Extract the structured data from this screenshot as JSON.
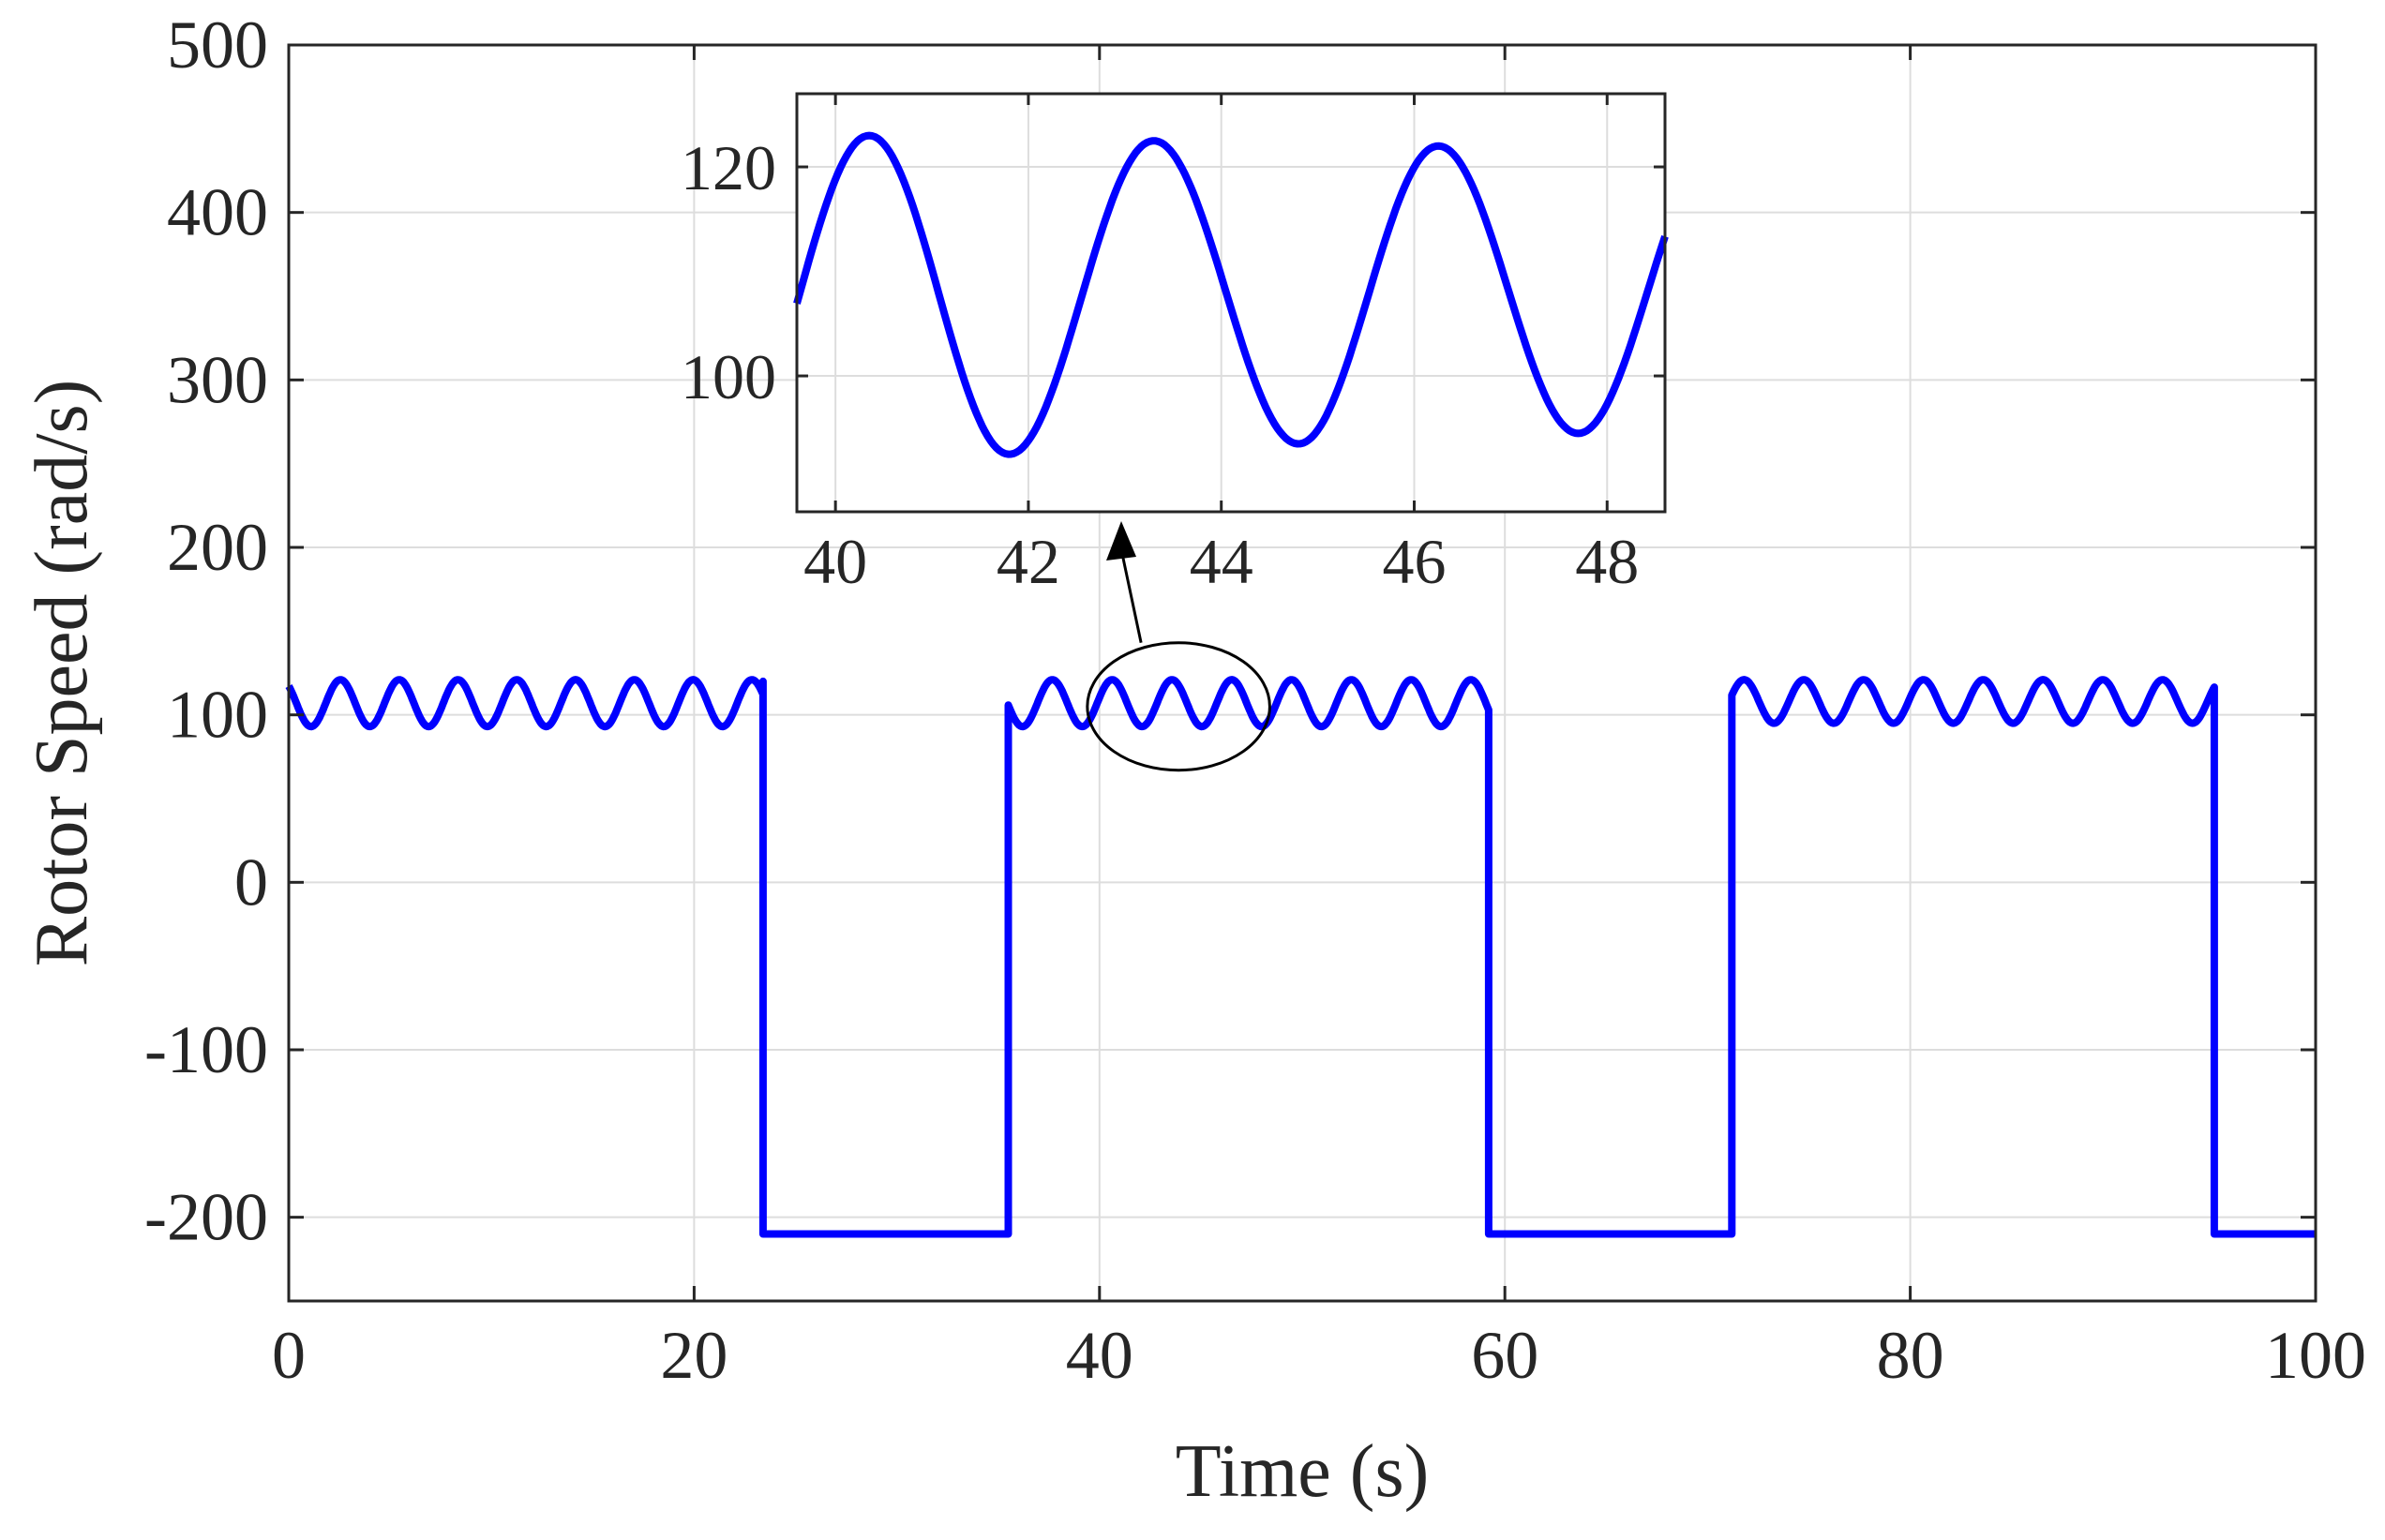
{
  "chart_data": [
    {
      "type": "line",
      "role": "main",
      "xlabel": "Time (s)",
      "ylabel": "Rotor Speed (rad/s)",
      "xlim": [
        0,
        100
      ],
      "ylim": [
        -250,
        500
      ],
      "xticks": [
        0,
        20,
        40,
        60,
        80,
        100
      ],
      "xtick_labels": [
        "0",
        "20",
        "40",
        "60",
        "80",
        "100"
      ],
      "yticks": [
        -200,
        -100,
        0,
        100,
        200,
        300,
        400,
        500
      ],
      "ytick_labels": [
        "-200",
        "-100",
        "0",
        "100",
        "200",
        "300",
        "400",
        "500"
      ],
      "grid": true,
      "line_color": "#0000ff",
      "series": [
        {
          "segments": [
            {
              "kind": "oscillation",
              "x_start": 0,
              "x_end": 23.4,
              "center": 107,
              "amplitude": 14,
              "period": 2.9,
              "phase_x": 1.1,
              "trough_at_phase": true
            },
            {
              "kind": "step",
              "x": 23.4,
              "from": 120,
              "to": -210
            },
            {
              "kind": "constant",
              "x_start": 23.4,
              "x_end": 35.5,
              "y": -210
            },
            {
              "kind": "step",
              "x": 35.5,
              "from": -210,
              "to": 98
            },
            {
              "kind": "oscillation",
              "x_start": 35.5,
              "x_end": 59.2,
              "center": 107,
              "amplitude": 14,
              "period": 2.95,
              "phase_x": 36.2,
              "trough_at_phase": true
            },
            {
              "kind": "step",
              "x": 59.2,
              "from": 100,
              "to": -210
            },
            {
              "kind": "constant",
              "x_start": 59.2,
              "x_end": 71.2,
              "y": -210
            },
            {
              "kind": "step",
              "x": 71.2,
              "from": -210,
              "to": 105
            },
            {
              "kind": "oscillation",
              "x_start": 71.2,
              "x_end": 95.0,
              "center": 108,
              "amplitude": 13,
              "period": 2.95,
              "phase_x": 71.8,
              "trough_at_phase": false
            },
            {
              "kind": "step",
              "x": 95.0,
              "from": 112,
              "to": -210
            },
            {
              "kind": "constant",
              "x_start": 95.0,
              "x_end": 100,
              "y": -210
            }
          ]
        }
      ]
    },
    {
      "type": "line",
      "role": "inset",
      "xlim": [
        39.6,
        48.6
      ],
      "ylim": [
        87,
        127
      ],
      "xticks": [
        40,
        42,
        44,
        46,
        48
      ],
      "xtick_labels": [
        "40",
        "42",
        "44",
        "46",
        "48"
      ],
      "yticks": [
        100,
        120
      ],
      "ytick_labels": [
        "100",
        "120"
      ],
      "grid": true,
      "line_color": "#0000ff",
      "series": [
        {
          "kind": "oscillation",
          "x_start": 39.6,
          "x_end": 48.6,
          "period": 2.95,
          "peaks": [
            {
              "x": 40.35,
              "y": 123
            },
            {
              "x": 43.3,
              "y": 122.5
            },
            {
              "x": 46.25,
              "y": 122
            }
          ],
          "troughs": [
            {
              "x": 41.8,
              "y": 92.5
            },
            {
              "x": 44.8,
              "y": 93.5
            },
            {
              "x": 47.7,
              "y": 94.5
            }
          ]
        }
      ]
    }
  ],
  "annotation": {
    "type": "ellipse-with-arrow",
    "highlighted_x_range": [
      39.6,
      48.6
    ],
    "target": "inset"
  }
}
